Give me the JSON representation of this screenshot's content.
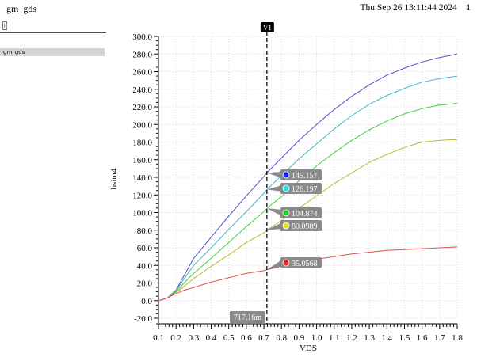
{
  "window": {
    "title": "gm_gds",
    "timestamp": "Thu Sep 26 13:11:44 2024",
    "page_number": "1"
  },
  "signal_list": {
    "items": [
      {
        "label": "gm_gds"
      }
    ]
  },
  "colors": {
    "cursor": "#000000",
    "grid": "#d9d9d9",
    "label_bg": "#8a8a8a",
    "series": [
      "#5050c8",
      "#40b8c8",
      "#40d040",
      "#b8b830",
      "#e05050"
    ],
    "markers": [
      "#1a1aff",
      "#20e0e8",
      "#20d020",
      "#e8e020",
      "#e02020"
    ]
  },
  "chart_data": {
    "type": "line",
    "xlabel": "VDS",
    "ylabel": "bsim4",
    "xlim": [
      0.1,
      1.8
    ],
    "ylim": [
      -20.0,
      300.0
    ],
    "x_ticks": [
      "0.1",
      "0.2",
      "0.3",
      "0.4",
      "0.5",
      "0.6",
      "0.7",
      "0.8",
      "0.9",
      "1.0",
      "1.1",
      "1.2",
      "1.3",
      "1.4",
      "1.5",
      "1.6",
      "1.7",
      "1.8"
    ],
    "y_ticks": [
      "-20.0",
      "0.0",
      "20.0",
      "40.0",
      "60.0",
      "80.0",
      "100.0",
      "120.0",
      "140.0",
      "160.0",
      "180.0",
      "200.0",
      "220.0",
      "240.0",
      "260.0",
      "280.0",
      "300.0"
    ],
    "grid": true,
    "x": [
      0.1,
      0.15,
      0.2,
      0.25,
      0.3,
      0.4,
      0.5,
      0.6,
      0.7,
      0.717,
      0.8,
      0.9,
      1.0,
      1.1,
      1.2,
      1.3,
      1.4,
      1.5,
      1.6,
      1.7,
      1.8
    ],
    "series": [
      {
        "values": [
          0,
          3,
          12,
          30,
          48,
          72,
          96,
          119,
          141,
          145.157,
          162,
          182,
          200,
          217,
          232,
          245,
          256,
          264,
          271,
          276,
          280
        ]
      },
      {
        "values": [
          0,
          3,
          11,
          26,
          40,
          60,
          81,
          101,
          122,
          126.197,
          142,
          161,
          178,
          195,
          210,
          223,
          233,
          241,
          248,
          252,
          255
        ]
      },
      {
        "values": [
          0,
          3,
          10,
          21,
          31,
          48,
          66,
          84,
          101,
          104.874,
          118,
          136,
          153,
          168,
          182,
          194,
          204,
          212,
          218,
          222,
          224
        ]
      },
      {
        "values": [
          0,
          3,
          9,
          17,
          25,
          39,
          52,
          66,
          77,
          80.0989,
          91,
          105,
          119,
          133,
          145,
          157,
          166,
          174,
          180,
          182,
          183
        ]
      },
      {
        "values": [
          0,
          3,
          8,
          12,
          15,
          21,
          26,
          31,
          34,
          35.0568,
          39,
          43,
          47,
          50,
          53,
          55,
          57,
          58,
          59,
          60,
          61
        ]
      }
    ],
    "cursor": {
      "name": "V1",
      "x": 0.71716,
      "x_label": "717.16m",
      "labels": [
        "145.157",
        "126.197",
        "104.874",
        "80.0989",
        "35.0568"
      ]
    }
  }
}
